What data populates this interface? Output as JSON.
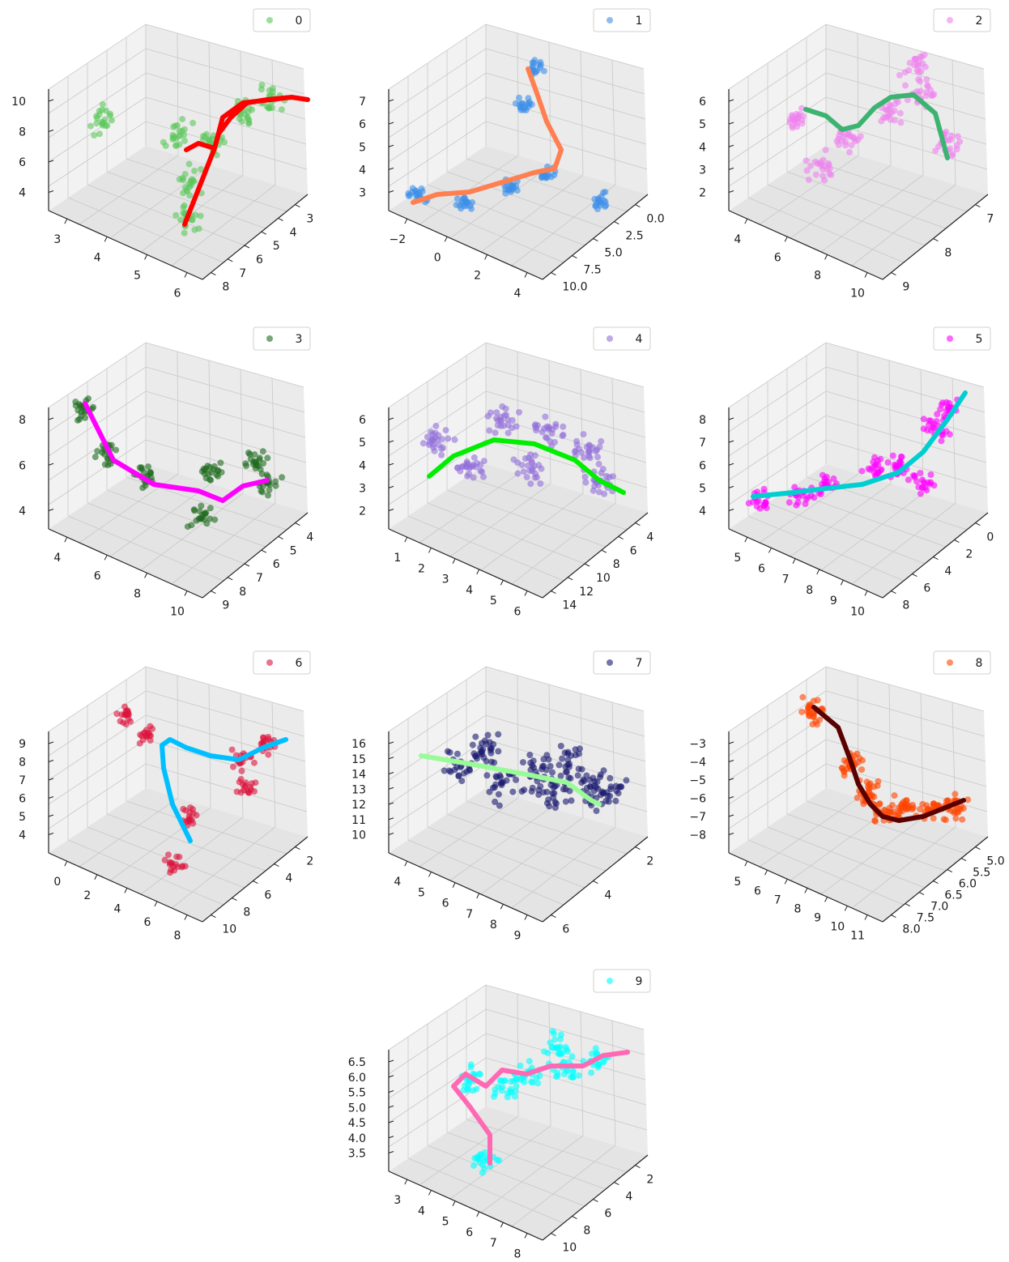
{
  "chart_data": [
    {
      "type": "scatter",
      "subtype": "3d-scatter-with-curve",
      "legend": {
        "label": "0",
        "placement": "upper-right"
      },
      "point_color": "#5cc85c",
      "curve_color": "#ff0000",
      "axes": {
        "x": {
          "ticks": [
            "3",
            "4",
            "5",
            "6"
          ]
        },
        "y": {
          "ticks": [
            "3",
            "4",
            "5",
            "6",
            "7",
            "8"
          ]
        },
        "z": {
          "ticks": [
            "4",
            "6",
            "8",
            "10"
          ]
        }
      },
      "grid": true
    },
    {
      "type": "scatter",
      "subtype": "3d-scatter-with-curve",
      "legend": {
        "label": "1",
        "placement": "upper-right"
      },
      "point_color": "#3d8fea",
      "curve_color": "#ff7f50",
      "axes": {
        "x": {
          "ticks": [
            "−2",
            "0",
            "2",
            "4"
          ]
        },
        "y": {
          "ticks": [
            "0.0",
            "2.5",
            "5.0",
            "7.5",
            "10.0"
          ]
        },
        "z": {
          "ticks": [
            "3",
            "4",
            "5",
            "6",
            "7"
          ]
        }
      },
      "grid": true
    },
    {
      "type": "scatter",
      "subtype": "3d-scatter-with-curve",
      "legend": {
        "label": "2",
        "placement": "upper-right"
      },
      "point_color": "#ee82ee",
      "curve_color": "#3cb371",
      "axes": {
        "x": {
          "ticks": [
            "4",
            "6",
            "8",
            "10"
          ]
        },
        "y": {
          "ticks": [
            "7",
            "8",
            "9"
          ]
        },
        "z": {
          "ticks": [
            "2",
            "3",
            "4",
            "5",
            "6"
          ]
        }
      },
      "grid": true
    },
    {
      "type": "scatter",
      "subtype": "3d-scatter-with-curve",
      "legend": {
        "label": "3",
        "placement": "upper-right"
      },
      "point_color": "#1e6b1e",
      "curve_color": "#ff00ff",
      "axes": {
        "x": {
          "ticks": [
            "4",
            "6",
            "8",
            "10"
          ]
        },
        "y": {
          "ticks": [
            "4",
            "5",
            "6",
            "7",
            "8",
            "9"
          ]
        },
        "z": {
          "ticks": [
            "4",
            "6",
            "8"
          ]
        }
      },
      "grid": true
    },
    {
      "type": "scatter",
      "subtype": "3d-scatter-with-curve",
      "legend": {
        "label": "4",
        "placement": "upper-right"
      },
      "point_color": "#9370db",
      "curve_color": "#00ee00",
      "axes": {
        "x": {
          "ticks": [
            "1",
            "2",
            "3",
            "4",
            "5",
            "6"
          ]
        },
        "y": {
          "ticks": [
            "4",
            "6",
            "8",
            "10",
            "12",
            "14"
          ]
        },
        "z": {
          "ticks": [
            "2",
            "3",
            "4",
            "5",
            "6"
          ]
        }
      },
      "grid": true
    },
    {
      "type": "scatter",
      "subtype": "3d-scatter-with-curve",
      "legend": {
        "label": "5",
        "placement": "upper-right"
      },
      "point_color": "#ff00ff",
      "curve_color": "#00ced1",
      "axes": {
        "x": {
          "ticks": [
            "5",
            "6",
            "7",
            "8",
            "9",
            "10"
          ]
        },
        "y": {
          "ticks": [
            "0",
            "2",
            "4",
            "6",
            "8"
          ]
        },
        "z": {
          "ticks": [
            "4",
            "5",
            "6",
            "7",
            "8"
          ]
        }
      },
      "grid": true
    },
    {
      "type": "scatter",
      "subtype": "3d-scatter-with-curve",
      "legend": {
        "label": "6",
        "placement": "upper-right"
      },
      "point_color": "#dc143c",
      "curve_color": "#00bfff",
      "axes": {
        "x": {
          "ticks": [
            "0",
            "2",
            "4",
            "6",
            "8"
          ]
        },
        "y": {
          "ticks": [
            "2",
            "4",
            "6",
            "8",
            "10"
          ]
        },
        "z": {
          "ticks": [
            "4",
            "5",
            "6",
            "7",
            "8",
            "9"
          ]
        }
      },
      "grid": true
    },
    {
      "type": "scatter",
      "subtype": "3d-scatter-with-curve",
      "legend": {
        "label": "7",
        "placement": "upper-right"
      },
      "point_color": "#191970",
      "curve_color": "#98fb98",
      "axes": {
        "x": {
          "ticks": [
            "4",
            "5",
            "6",
            "7",
            "8",
            "9"
          ]
        },
        "y": {
          "ticks": [
            "2",
            "4",
            "6"
          ]
        },
        "z": {
          "ticks": [
            "10",
            "11",
            "12",
            "13",
            "14",
            "15",
            "16"
          ]
        }
      },
      "grid": true
    },
    {
      "type": "scatter",
      "subtype": "3d-scatter-with-curve",
      "legend": {
        "label": "8",
        "placement": "upper-right"
      },
      "point_color": "#ff4500",
      "curve_color": "#5a0000",
      "axes": {
        "x": {
          "ticks": [
            "5",
            "6",
            "7",
            "8",
            "9",
            "10",
            "11"
          ]
        },
        "y": {
          "ticks": [
            "5.0",
            "5.5",
            "6.0",
            "6.5",
            "7.0",
            "7.5",
            "8.0"
          ]
        },
        "z": {
          "ticks": [
            "−8",
            "−7",
            "−6",
            "−5",
            "−4",
            "−3"
          ]
        }
      },
      "grid": true
    },
    {
      "type": "scatter",
      "subtype": "3d-scatter-with-curve",
      "legend": {
        "label": "9",
        "placement": "upper-right"
      },
      "point_color": "#00ffff",
      "curve_color": "#ff69b4",
      "axes": {
        "x": {
          "ticks": [
            "3",
            "4",
            "5",
            "6",
            "7",
            "8"
          ]
        },
        "y": {
          "ticks": [
            "2",
            "4",
            "6",
            "8",
            "10"
          ]
        },
        "z": {
          "ticks": [
            "3.5",
            "4.0",
            "4.5",
            "5.0",
            "5.5",
            "6.0",
            "6.5"
          ]
        }
      },
      "grid": true
    }
  ]
}
